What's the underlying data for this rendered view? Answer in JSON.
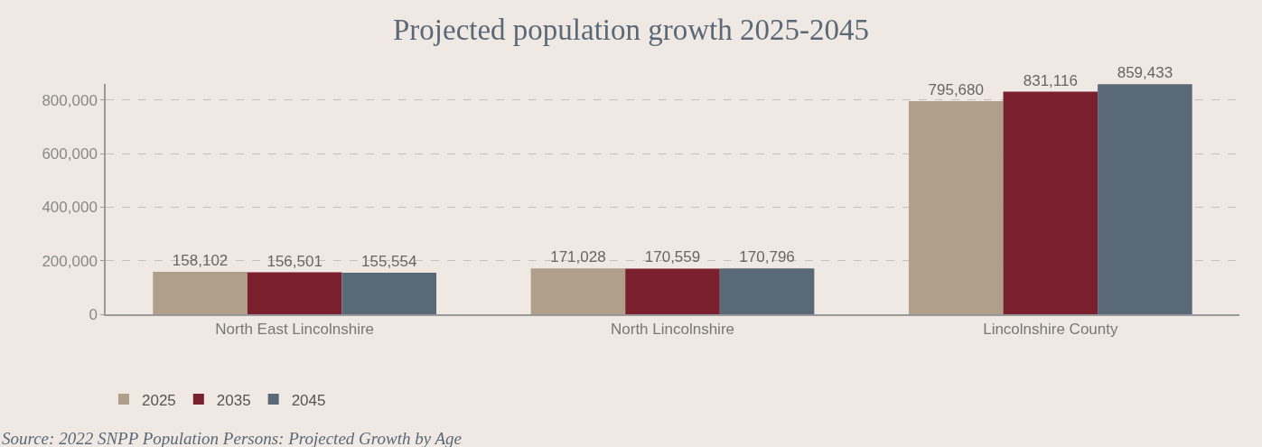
{
  "chart_data": {
    "type": "bar",
    "title": "Projected population growth 2025-2045",
    "categories": [
      "North East Lincolnshire",
      "North Lincolnshire",
      "Lincolnshire County"
    ],
    "series": [
      {
        "name": "2025",
        "color": "#b09f8a",
        "values": [
          158102,
          171028,
          795680
        ],
        "value_labels": [
          "158,102",
          "171,028",
          "795,680"
        ]
      },
      {
        "name": "2035",
        "color": "#7a1f2e",
        "values": [
          156501,
          170559,
          831116
        ],
        "value_labels": [
          "156,501",
          "170,559",
          "831,116"
        ]
      },
      {
        "name": "2045",
        "color": "#5a6978",
        "values": [
          155554,
          170796,
          859433
        ],
        "value_labels": [
          "155,554",
          "170,796",
          "859,433"
        ]
      }
    ],
    "ylim": [
      0,
      860000
    ],
    "yticks": [
      {
        "value": 0,
        "label": "0"
      },
      {
        "value": 200000,
        "label": "200,000"
      },
      {
        "value": 400000,
        "label": "400,000"
      },
      {
        "value": 600000,
        "label": "600,000"
      },
      {
        "value": 800000,
        "label": "800,000"
      }
    ],
    "grid": "y",
    "legend": "bottom left",
    "annotations": [
      "Source: 2022 SNPP Population Persons: Projected Growth by Age"
    ]
  }
}
